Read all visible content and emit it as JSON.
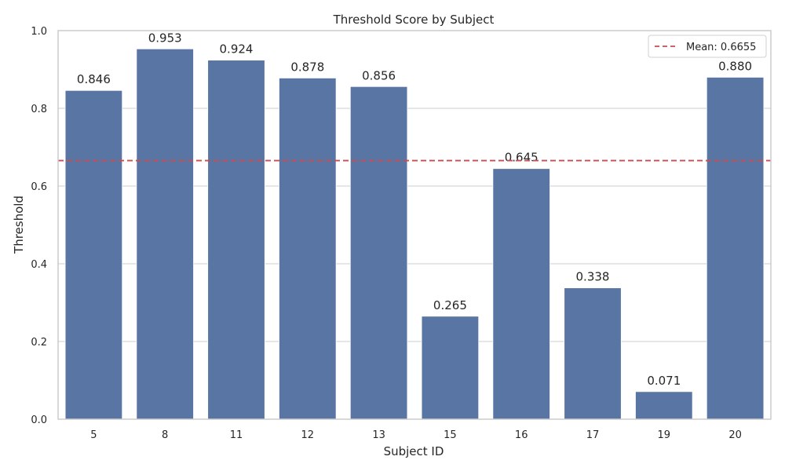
{
  "chart_data": {
    "type": "bar",
    "title": "Threshold Score by Subject",
    "xlabel": "Subject ID",
    "ylabel": "Threshold",
    "categories": [
      "5",
      "8",
      "11",
      "12",
      "13",
      "15",
      "16",
      "17",
      "19",
      "20"
    ],
    "values": [
      0.846,
      0.953,
      0.924,
      0.878,
      0.856,
      0.265,
      0.645,
      0.338,
      0.071,
      0.88
    ],
    "data_labels": [
      "0.846",
      "0.953",
      "0.924",
      "0.878",
      "0.856",
      "0.265",
      "0.645",
      "0.338",
      "0.071",
      "0.880"
    ],
    "ylim": [
      0,
      1.0
    ],
    "yticks": [
      0.0,
      0.2,
      0.4,
      0.6,
      0.8,
      1.0
    ],
    "ytick_labels": [
      "0.0",
      "0.2",
      "0.4",
      "0.6",
      "0.8",
      "1.0"
    ],
    "mean_line": {
      "value": 0.6655,
      "label": "Mean: 0.6655",
      "color": "#c44e52",
      "style": "dashed"
    },
    "bar_color": "#5975a4",
    "grid": "horizontal",
    "legend_position": "top-right"
  }
}
